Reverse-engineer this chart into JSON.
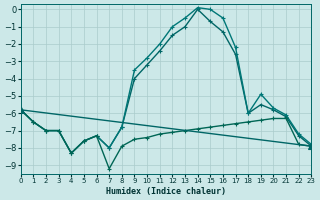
{
  "xlabel": "Humidex (Indice chaleur)",
  "xlim": [
    0,
    23
  ],
  "ylim": [
    -9.5,
    0.3
  ],
  "yticks": [
    0,
    -1,
    -2,
    -3,
    -4,
    -5,
    -6,
    -7,
    -8,
    -9
  ],
  "xticks": [
    0,
    1,
    2,
    3,
    4,
    5,
    6,
    7,
    8,
    9,
    10,
    11,
    12,
    13,
    14,
    15,
    16,
    17,
    18,
    19,
    20,
    21,
    22,
    23
  ],
  "background_color": "#cce8e8",
  "grid_color": "#aacccc",
  "series": [
    {
      "x": [
        0,
        1,
        2,
        3,
        4,
        5,
        6,
        7,
        8,
        9,
        10,
        11,
        12,
        13,
        14,
        15,
        16,
        17,
        18,
        19,
        20,
        21,
        22,
        23
      ],
      "y": [
        -5.8,
        -6.5,
        -7.0,
        -7.0,
        -8.3,
        -7.6,
        -7.3,
        -8.0,
        -6.8,
        -4.0,
        -3.2,
        -2.4,
        -1.5,
        -1.0,
        0.0,
        -0.7,
        -1.3,
        -2.6,
        -6.0,
        -5.5,
        -5.8,
        -6.2,
        -7.3,
        -7.9
      ],
      "marker": "+",
      "color": "#006666",
      "linewidth": 1.0,
      "markersize": 3.5,
      "linestyle": "-"
    },
    {
      "x": [
        0,
        1,
        2,
        3,
        4,
        5,
        6,
        7,
        8,
        9,
        10,
        11,
        12,
        13,
        14,
        15,
        16,
        17,
        18,
        19,
        20,
        21,
        22,
        23
      ],
      "y": [
        -5.8,
        -6.5,
        -7.0,
        -7.0,
        -8.3,
        -7.6,
        -7.3,
        -8.0,
        -6.8,
        -3.5,
        -2.8,
        -2.0,
        -1.0,
        -0.5,
        0.1,
        0.0,
        -0.5,
        -2.2,
        -6.0,
        -4.9,
        -5.7,
        -6.1,
        -7.2,
        -7.8
      ],
      "marker": "+",
      "color": "#007777",
      "linewidth": 1.0,
      "markersize": 3.5,
      "linestyle": "-"
    },
    {
      "x": [
        0,
        1,
        2,
        3,
        4,
        5,
        6,
        7,
        8,
        9,
        10,
        11,
        12,
        13,
        14,
        15,
        16,
        17,
        18,
        19,
        20,
        21,
        22,
        23
      ],
      "y": [
        -5.8,
        -6.5,
        -7.0,
        -7.0,
        -8.3,
        -7.6,
        -7.3,
        -9.2,
        -7.9,
        -7.5,
        -7.4,
        -7.2,
        -7.1,
        -7.0,
        -6.9,
        -6.8,
        -6.7,
        -6.6,
        -6.5,
        -6.4,
        -6.3,
        -6.3,
        -7.8,
        -7.9
      ],
      "marker": "+",
      "color": "#006655",
      "linewidth": 1.0,
      "markersize": 3.5,
      "linestyle": "-"
    },
    {
      "x": [
        0,
        23
      ],
      "y": [
        -5.8,
        -7.9
      ],
      "marker": "^",
      "color": "#006666",
      "linewidth": 1.0,
      "markersize": 4,
      "linestyle": "-"
    }
  ]
}
